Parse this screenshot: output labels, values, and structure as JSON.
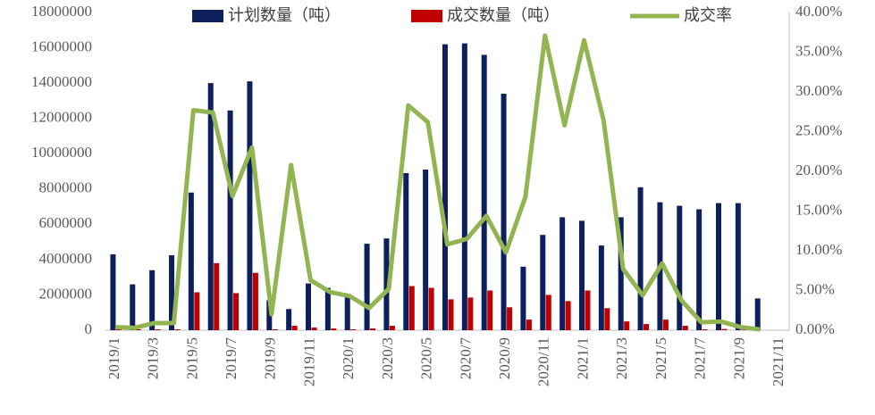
{
  "chart_data": {
    "type": "bar",
    "categories": [
      "2019/1",
      null,
      "2019/3",
      null,
      "2019/5",
      null,
      "2019/7",
      null,
      "2019/9",
      null,
      "2019/11",
      null,
      "2020/1",
      null,
      "2020/3",
      null,
      "2020/5",
      null,
      "2020/7",
      null,
      "2020/9",
      null,
      "2020/11",
      null,
      "2021/1",
      null,
      "2021/3",
      null,
      "2021/5",
      null,
      "2021/7",
      null,
      "2021/9",
      null,
      "2021/11"
    ],
    "series": [
      {
        "name": "计划数量（吨）",
        "color": "#0d1f5c",
        "type": "bar",
        "values": [
          4300000,
          2600000,
          3400000,
          4250000,
          7800000,
          14000000,
          12450000,
          14100000,
          1700000,
          1200000,
          2650000,
          2400000,
          2000000,
          4900000,
          5200000,
          8900000,
          9100000,
          16200000,
          16250000,
          15600000,
          13400000,
          3600000,
          5400000,
          6400000,
          6200000,
          4800000,
          6400000,
          8100000,
          7250000,
          7050000,
          6850000,
          7200000,
          7200000,
          1800000,
          null
        ]
      },
      {
        "name": "成交数量（吨）",
        "color": "#c00000",
        "type": "bar",
        "values": [
          250000,
          50000,
          50000,
          50000,
          2150000,
          3800000,
          2100000,
          3250000,
          50000,
          250000,
          150000,
          100000,
          50000,
          100000,
          250000,
          2500000,
          2400000,
          1750000,
          1850000,
          2250000,
          1300000,
          600000,
          2000000,
          1650000,
          2250000,
          1250000,
          500000,
          350000,
          600000,
          250000,
          50000,
          70000,
          30000,
          0,
          null
        ]
      },
      {
        "name": "成交率",
        "color": "#92b552",
        "type": "line",
        "axis": "y2",
        "values": [
          0.4,
          0.3,
          0.9,
          0.9,
          27.7,
          27.4,
          16.9,
          23.0,
          2.0,
          20.8,
          6.3,
          4.8,
          4.3,
          2.8,
          5.2,
          28.3,
          26.2,
          10.8,
          11.5,
          14.4,
          9.8,
          16.8,
          37.1,
          25.8,
          36.5,
          26.4,
          7.7,
          4.4,
          8.4,
          3.7,
          1.0,
          1.1,
          0.4,
          0.1,
          null
        ]
      }
    ],
    "ylim": [
      0,
      18000000
    ],
    "yticks": [
      0,
      2000000,
      4000000,
      6000000,
      8000000,
      10000000,
      12000000,
      14000000,
      16000000,
      18000000
    ],
    "y2lim": [
      0,
      40
    ],
    "y2ticks": [
      {
        "value": 0,
        "label": "0.00%"
      },
      {
        "value": 5,
        "label": "5.00%"
      },
      {
        "value": 10,
        "label": "10.00%"
      },
      {
        "value": 15,
        "label": "15.00%"
      },
      {
        "value": 20,
        "label": "20.00%"
      },
      {
        "value": 25,
        "label": "25.00%"
      },
      {
        "value": 30,
        "label": "30.00%"
      },
      {
        "value": 35,
        "label": "35.00%"
      },
      {
        "value": 40,
        "label": "40.00%"
      }
    ],
    "legend": "top",
    "grid": false
  }
}
